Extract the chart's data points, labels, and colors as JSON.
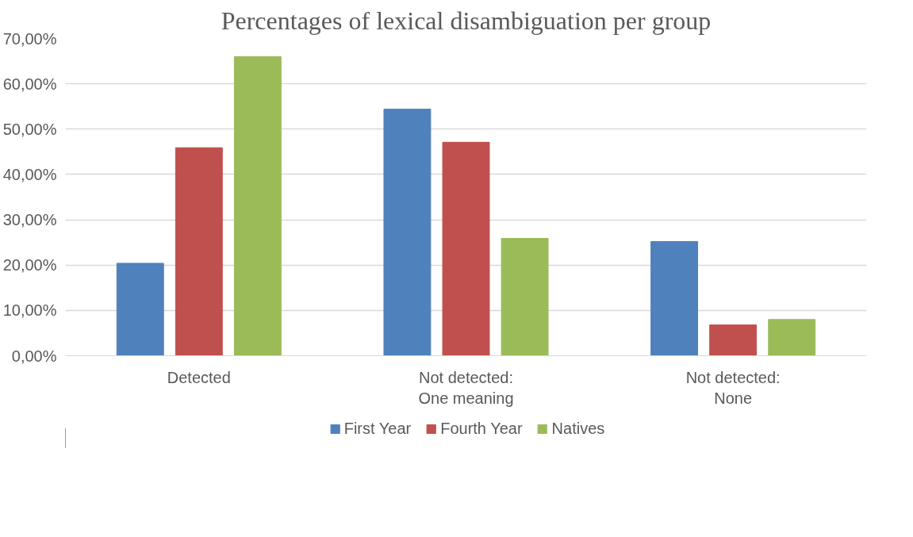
{
  "chart_data": {
    "type": "bar",
    "title": "Percentages of lexical disambiguation per group",
    "categories": [
      "Detected",
      "Not detected:\nOne meaning",
      "Not detected:\nNone"
    ],
    "series": [
      {
        "name": "First Year",
        "color": "#4f81bd",
        "values": [
          20.4,
          54.4,
          25.2
        ]
      },
      {
        "name": "Fourth Year",
        "color": "#c0504d",
        "values": [
          45.9,
          47.1,
          6.8
        ]
      },
      {
        "name": "Natives",
        "color": "#9bbb59",
        "values": [
          66.0,
          25.9,
          8.0
        ]
      }
    ],
    "ylim": [
      0,
      70
    ],
    "yticks": [
      {
        "value": 0,
        "label": "0,00%"
      },
      {
        "value": 10,
        "label": "10,00%"
      },
      {
        "value": 20,
        "label": "20,00%"
      },
      {
        "value": 30,
        "label": "30,00%"
      },
      {
        "value": 40,
        "label": "40,00%"
      },
      {
        "value": 50,
        "label": "50,00%"
      },
      {
        "value": 60,
        "label": "60,00%"
      },
      {
        "value": 70,
        "label": "70,00%"
      }
    ],
    "grid": "y",
    "legend": "bottom"
  }
}
